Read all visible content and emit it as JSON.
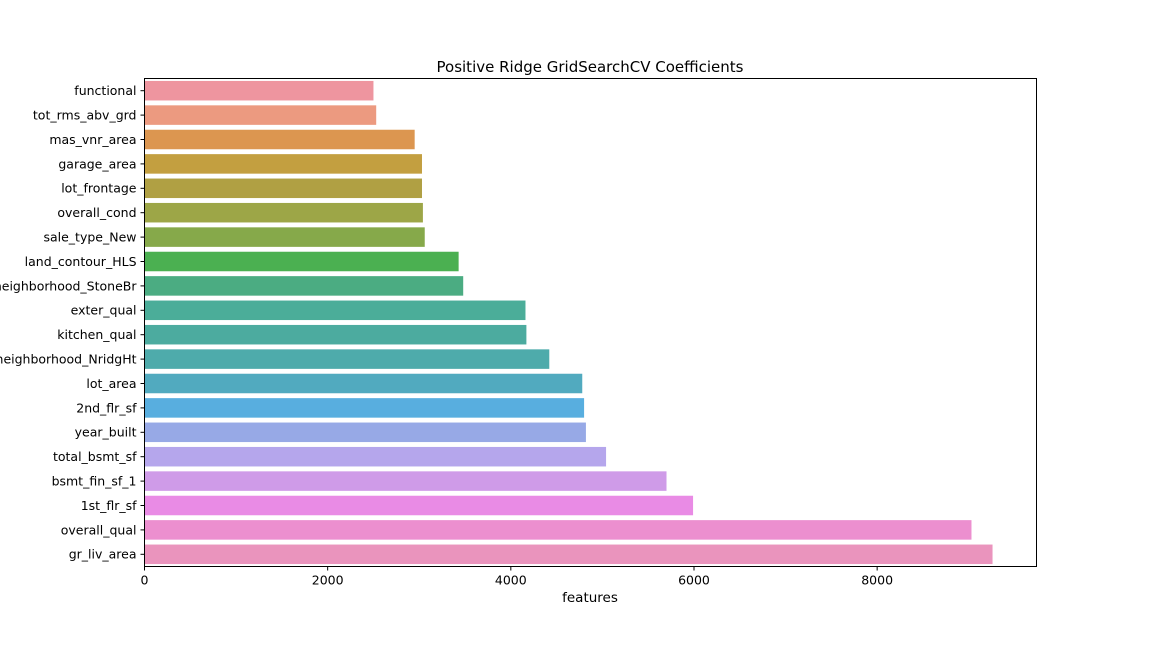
{
  "chart_data": {
    "type": "bar",
    "orientation": "horizontal",
    "title": "Positive Ridge GridSearchCV Coefficients",
    "xlabel": "features",
    "ylabel": "",
    "xlim": [
      0,
      9740
    ],
    "xticks": [
      0,
      2000,
      4000,
      6000,
      8000
    ],
    "grid": false,
    "categories": [
      "functional",
      "tot_rms_abv_grd",
      "mas_vnr_area",
      "garage_area",
      "lot_frontage",
      "overall_cond",
      "sale_type_New",
      "land_contour_HLS",
      "neighborhood_StoneBr",
      "exter_qual",
      "kitchen_qual",
      "neighborhood_NridgHt",
      "lot_area",
      "2nd_flr_sf",
      "year_built",
      "total_bsmt_sf",
      "bsmt_fin_sf_1",
      "1st_flr_sf",
      "overall_qual",
      "gr_liv_area"
    ],
    "values": [
      2500,
      2530,
      2950,
      3030,
      3030,
      3040,
      3060,
      3430,
      3480,
      4160,
      4170,
      4420,
      4780,
      4800,
      4820,
      5040,
      5700,
      5990,
      9030,
      9260
    ],
    "colors": [
      "#ee959f",
      "#ec9a80",
      "#dc9650",
      "#c39f40",
      "#b0a043",
      "#9da647",
      "#86a94a",
      "#4bb051",
      "#4bac82",
      "#4bad99",
      "#4cab9f",
      "#4eabab",
      "#51aabf",
      "#58aedf",
      "#97a9e6",
      "#b5a6ec",
      "#cf9be8",
      "#e98be5",
      "#ec8fcf",
      "#ea94bd"
    ]
  }
}
